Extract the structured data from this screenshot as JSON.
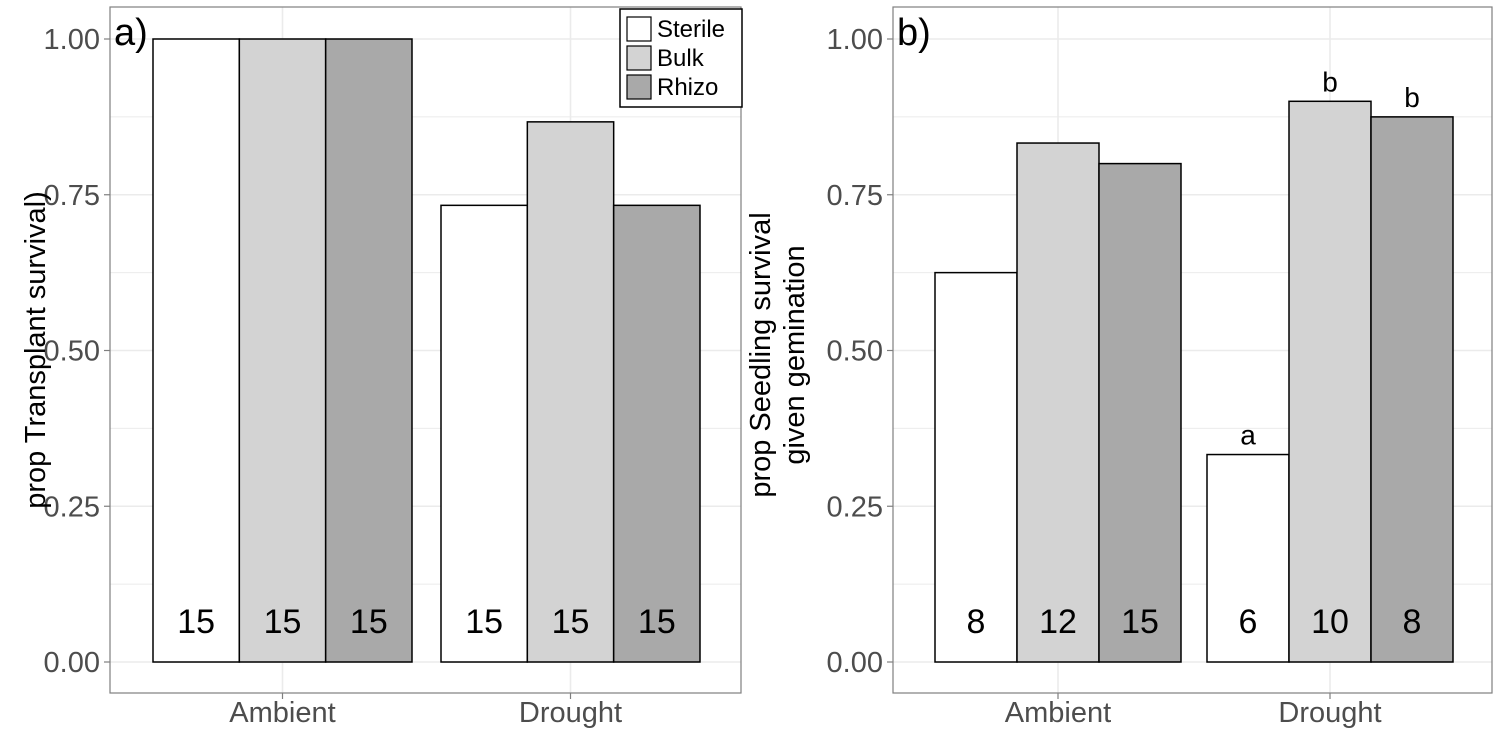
{
  "figure": {
    "panel_a_label": "a)",
    "panel_b_label": "b)"
  },
  "colors": {
    "Sterile": "#ffffff",
    "Bulk": "#d3d3d3",
    "Rhizo": "#a9a9a9",
    "grid": "#ebebeb",
    "panel_border": "#7f7f7f",
    "tick_text": "#4d4d4d"
  },
  "chart_data": [
    {
      "type": "bar",
      "panel": "a)",
      "title": "",
      "xlabel": "",
      "ylabel": "prop Transplant survival)",
      "ylim": [
        0,
        1.05
      ],
      "yticks": [
        0.0,
        0.25,
        0.5,
        0.75,
        1.0
      ],
      "ytick_labels": [
        "0.00",
        "0.25",
        "0.50",
        "0.75",
        "1.00"
      ],
      "categories": [
        "Ambient",
        "Drought"
      ],
      "grid": true,
      "legend": {
        "position": "top-right",
        "entries": [
          "Sterile",
          "Bulk",
          "Rhizo"
        ]
      },
      "series": [
        {
          "name": "Sterile",
          "values": [
            1.0,
            0.733
          ],
          "n_labels": [
            "15",
            "15"
          ],
          "sig_labels": [
            "",
            ""
          ]
        },
        {
          "name": "Bulk",
          "values": [
            1.0,
            0.867
          ],
          "n_labels": [
            "15",
            "15"
          ],
          "sig_labels": [
            "",
            ""
          ]
        },
        {
          "name": "Rhizo",
          "values": [
            1.0,
            0.733
          ],
          "n_labels": [
            "15",
            "15"
          ],
          "sig_labels": [
            "",
            ""
          ]
        }
      ]
    },
    {
      "type": "bar",
      "panel": "b)",
      "title": "",
      "xlabel": "",
      "ylabel": [
        "prop Seedling survival",
        "given gemination"
      ],
      "ylim": [
        0,
        1.05
      ],
      "yticks": [
        0.0,
        0.25,
        0.5,
        0.75,
        1.0
      ],
      "ytick_labels": [
        "0.00",
        "0.25",
        "0.50",
        "0.75",
        "1.00"
      ],
      "categories": [
        "Ambient",
        "Drought"
      ],
      "grid": true,
      "legend": null,
      "series": [
        {
          "name": "Sterile",
          "values": [
            0.625,
            0.333
          ],
          "n_labels": [
            "8",
            "6"
          ],
          "sig_labels": [
            "",
            "a"
          ]
        },
        {
          "name": "Bulk",
          "values": [
            0.833,
            0.9
          ],
          "n_labels": [
            "12",
            "10"
          ],
          "sig_labels": [
            "",
            "b"
          ]
        },
        {
          "name": "Rhizo",
          "values": [
            0.8,
            0.875
          ],
          "n_labels": [
            "15",
            "8"
          ],
          "sig_labels": [
            "",
            "b"
          ]
        }
      ]
    }
  ]
}
